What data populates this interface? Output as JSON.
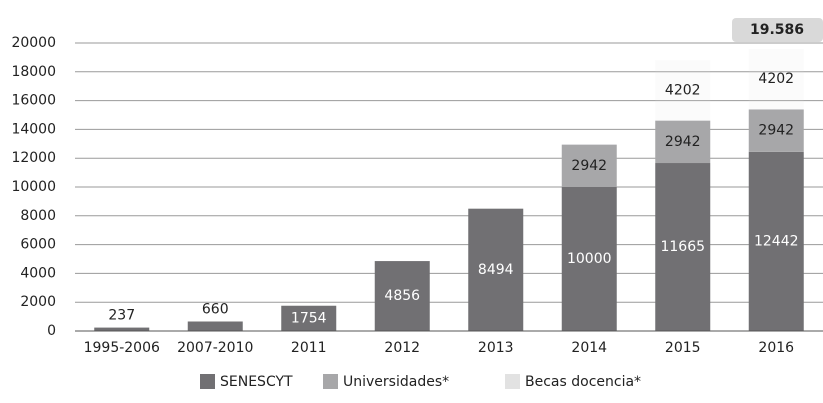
{
  "chart_data": {
    "type": "stacked_bar",
    "categories": [
      "1995-2006",
      "2007-2010",
      "2011",
      "2012",
      "2013",
      "2014",
      "2015",
      "2016"
    ],
    "series": [
      {
        "name": "SENESCYT",
        "color": "#717073",
        "values": [
          237,
          660,
          1754,
          4856,
          8494,
          10000,
          11665,
          12442
        ]
      },
      {
        "name": "Universidades*",
        "color": "#a7a7a9",
        "values": [
          null,
          null,
          null,
          null,
          null,
          2942,
          2942,
          2942
        ]
      },
      {
        "name": "Becas docencia*",
        "color": "#e2e2e2",
        "values": [
          null,
          null,
          null,
          null,
          null,
          null,
          4202,
          4202
        ]
      }
    ],
    "annotation": "19.586",
    "ylim": [
      0,
      20000
    ],
    "yticks": [
      0,
      2000,
      4000,
      6000,
      8000,
      10000,
      12000,
      14000,
      16000,
      18000,
      20000
    ],
    "grid": true,
    "legend": "bottom"
  }
}
